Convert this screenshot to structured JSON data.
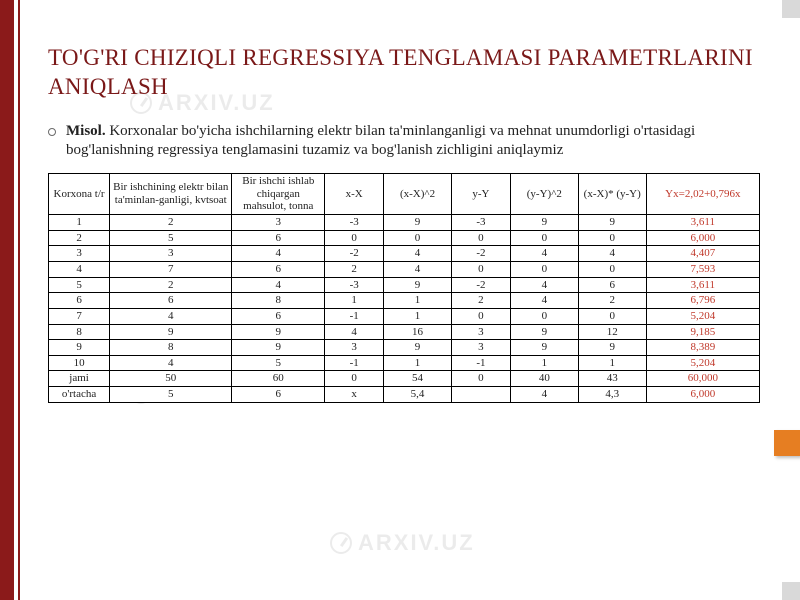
{
  "title": "TO'G'RI CHIZIQLI REGRESSIYA TENGLAMASI PARAMETRLARINI ANIQLASH",
  "para_bold": "Misol.",
  "para_rest": " Korxonalar bo'yicha ishchilarning elektr bilan ta'minlanganligi va mehnat unumdorligi o'rtasidagi bog'lanishning regressiya tenglamasini tuzamiz va bog'lanish zichligini aniqlaymiz",
  "watermark": "ARXIV.UZ",
  "table": {
    "headers": [
      "Korxona t/r",
      "Bir ishchining elektr bilan ta'minlan-ganligi, kvtsoat",
      "Bir ishchi ishlab chiqargan mahsulot, tonna",
      "x-X",
      "(x-X)^2",
      "y-Y",
      "(y-Y)^2",
      "(x-X)* (y-Y)",
      "Yx=2,02+0,796x"
    ],
    "rows": [
      [
        "1",
        "2",
        "3",
        "-3",
        "9",
        "-3",
        "9",
        "9",
        "3,611"
      ],
      [
        "2",
        "5",
        "6",
        "0",
        "0",
        "0",
        "0",
        "0",
        "6,000"
      ],
      [
        "3",
        "3",
        "4",
        "-2",
        "4",
        "-2",
        "4",
        "4",
        "4,407"
      ],
      [
        "4",
        "7",
        "6",
        "2",
        "4",
        "0",
        "0",
        "0",
        "7,593"
      ],
      [
        "5",
        "2",
        "4",
        "-3",
        "9",
        "-2",
        "4",
        "6",
        "3,611"
      ],
      [
        "6",
        "6",
        "8",
        "1",
        "1",
        "2",
        "4",
        "2",
        "6,796"
      ],
      [
        "7",
        "4",
        "6",
        "-1",
        "1",
        "0",
        "0",
        "0",
        "5,204"
      ],
      [
        "8",
        "9",
        "9",
        "4",
        "16",
        "3",
        "9",
        "12",
        "9,185"
      ],
      [
        "9",
        "8",
        "9",
        "3",
        "9",
        "3",
        "9",
        "9",
        "8,389"
      ],
      [
        "10",
        "4",
        "5",
        "-1",
        "1",
        "-1",
        "1",
        "1",
        "5,204"
      ],
      [
        "jami",
        "50",
        "60",
        "0",
        "54",
        "0",
        "40",
        "43",
        "60,000"
      ],
      [
        "o'rtacha",
        "5",
        "6",
        "x",
        "5,4",
        "",
        "4",
        "4,3",
        "6,000"
      ]
    ],
    "last_col_color": "#c0392b",
    "border_color": "#000000",
    "background_color": "#ffffff",
    "header_fontsize": 11,
    "cell_fontsize": 11
  },
  "colors": {
    "title": "#7a1818",
    "stripe": "#8b1a1a",
    "accent_square": "#e67e22",
    "grey_square": "#d9d9d9",
    "text": "#222222",
    "watermark": "rgba(0,0,0,0.08)"
  }
}
